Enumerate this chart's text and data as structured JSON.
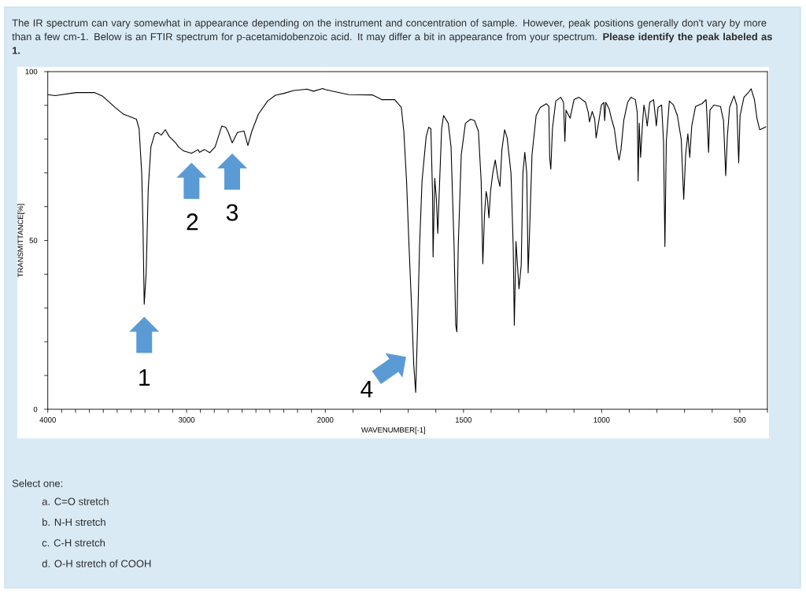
{
  "chart_data": [
    {
      "type": "line",
      "title": "The IR spectrum can vary somewhat in appearance depending on the instrument and concentration of sample. However, peak positions generally don't vary by more than a few cm-1. Below is an FTIR spectrum for p-acetamidobenzoic acid. It may differ a bit in appearance from your spectrum. **Please identify the peak labeled as 1.**",
      "ylabel": "TRANSMITTANCE[%]",
      "color": "#000000",
      "x": [
        4000,
        3947,
        3796,
        3664,
        3607,
        3512,
        3455,
        3361,
        3342,
        3323,
        3314,
        3305,
        3291,
        3276,
        3257,
        3229,
        3210,
        3182,
        3153,
        3125,
        3078,
        3058,
        3021,
        2964,
        2917,
        2907,
        2870,
        2832,
        2794,
        2746,
        2718,
        2699,
        2671,
        2633,
        2586,
        2558,
        2529,
        2482,
        2416,
        2359,
        2303,
        2227,
        2132,
        2085,
        2019,
        2000
      ],
      "values": [
        93.2,
        92.9,
        93.8,
        93.8,
        92.8,
        89.3,
        87.4,
        85.9,
        83.1,
        69.9,
        54.4,
        31.1,
        40.4,
        65.3,
        77.7,
        81.6,
        82.0,
        81.2,
        82.8,
        80.8,
        78.9,
        77.7,
        76.5,
        75.8,
        76.9,
        76.1,
        76.9,
        76.0,
        77.7,
        83.9,
        83.5,
        82.0,
        78.9,
        82.0,
        82.4,
        78.1,
        82.4,
        87.4,
        91.3,
        93.0,
        93.5,
        94.4,
        94.8,
        94.2,
        95.0,
        94.7
      ],
      "xlim": [
        4000,
        2000
      ],
      "ylim": [
        0,
        100
      ],
      "xticks": [
        4000,
        {
          "value": 3900,
          "label": null
        },
        {
          "value": 3800,
          "label": null
        },
        {
          "value": 3700,
          "label": null
        },
        {
          "value": 3600,
          "label": null
        },
        {
          "value": 3500,
          "label": null
        },
        {
          "value": 3400,
          "label": null
        },
        {
          "value": 3300,
          "label": null
        },
        {
          "value": 3200,
          "label": null
        },
        {
          "value": 3100,
          "label": null
        },
        3000,
        {
          "value": 2900,
          "label": null
        },
        {
          "value": 2800,
          "label": null
        },
        {
          "value": 2700,
          "label": null
        },
        {
          "value": 2600,
          "label": null
        },
        {
          "value": 2500,
          "label": null
        },
        {
          "value": 2400,
          "label": null
        },
        {
          "value": 2300,
          "label": null
        },
        {
          "value": 2200,
          "label": null
        },
        {
          "value": 2100,
          "label": null
        }
      ],
      "yticks": [
        0,
        {
          "value": 10,
          "label": null
        },
        {
          "value": 20,
          "label": null
        },
        {
          "value": 30,
          "label": null
        },
        {
          "value": 40,
          "label": null
        },
        50,
        {
          "value": 60,
          "label": null
        },
        {
          "value": 70,
          "label": null
        },
        {
          "value": 80,
          "label": null
        },
        {
          "value": 90,
          "label": null
        },
        100
      ],
      "annotations": [
        {
          "text": "1",
          "x": 3305,
          "y": 31.1
        },
        {
          "text": "2",
          "x": 2964,
          "y": 75.8
        },
        {
          "text": "3",
          "x": 2671,
          "y": 78.9
        }
      ]
    },
    {
      "type": "line",
      "xlabel": "WAVENUMBER[-1]",
      "color": "#000000",
      "x": [
        2000,
        1962,
        1915,
        1830,
        1796,
        1749,
        1725,
        1716,
        1706,
        1697,
        1687,
        1680,
        1673,
        1666,
        1659,
        1650,
        1635,
        1626,
        1618,
        1612,
        1610,
        1604,
        1598,
        1593,
        1588,
        1579,
        1572,
        1555,
        1545,
        1534,
        1528,
        1524,
        1519,
        1508,
        1493,
        1474,
        1460,
        1446,
        1436,
        1430,
        1424,
        1418,
        1413,
        1408,
        1402,
        1394,
        1385,
        1375,
        1368,
        1361,
        1351,
        1342,
        1328,
        1320,
        1316,
        1310,
        1304,
        1299,
        1291,
        1285,
        1278,
        1271,
        1266,
        1261,
        1252,
        1237,
        1222,
        1200,
        1191,
        1188,
        1184,
        1178,
        1166,
        1148,
        1138,
        1133,
        1129,
        1114,
        1100,
        1082,
        1058,
        1048,
        1044,
        1034,
        1025,
        1020,
        1013,
        1001,
        992,
        989,
        985,
        973,
        964,
        954,
        944,
        937,
        930,
        920,
        906,
        894,
        878,
        871,
        868,
        864,
        859,
        852,
        847,
        840,
        835,
        826,
        812,
        802,
        796,
        783,
        776,
        771,
        766,
        755,
        740,
        726,
        712,
        703,
        696,
        688,
        681,
        674,
        660,
        637,
        622,
        618,
        613,
        608,
        594,
        570,
        559,
        551,
        545,
        537,
        521,
        511,
        504,
        499,
        485,
        471,
        459,
        447,
        438,
        428,
        419,
        405
      ],
      "values": [
        94.7,
        94.0,
        93.2,
        93.1,
        91.7,
        91.7,
        89.4,
        82.4,
        67.6,
        48.2,
        28.7,
        13.2,
        5.0,
        24.9,
        48.2,
        67.6,
        80.8,
        83.5,
        83.1,
        63.7,
        45.1,
        68.4,
        62.2,
        52.1,
        63.7,
        83.1,
        87.0,
        84.7,
        77.7,
        48.2,
        24.9,
        22.9,
        48.2,
        75.4,
        84.7,
        85.9,
        85.5,
        82.4,
        67.6,
        43.1,
        57.5,
        64.5,
        62.2,
        56.7,
        64.5,
        69.9,
        73.8,
        68.4,
        66.0,
        76.9,
        82.8,
        80.4,
        69.9,
        48.2,
        24.9,
        49.7,
        42.0,
        35.7,
        42.7,
        69.9,
        76.1,
        69.9,
        40.4,
        52.1,
        75.4,
        87.0,
        89.4,
        90.5,
        89.7,
        74.6,
        71.1,
        83.1,
        91.3,
        92.4,
        90.9,
        79.3,
        88.6,
        86.2,
        91.7,
        92.4,
        90.9,
        87.8,
        85.1,
        88.2,
        85.9,
        80.4,
        83.9,
        90.1,
        90.9,
        85.5,
        90.9,
        89.0,
        85.9,
        83.1,
        76.9,
        73.8,
        76.9,
        85.5,
        90.9,
        92.4,
        91.7,
        87.8,
        67.6,
        84.7,
        74.6,
        84.7,
        90.1,
        87.0,
        83.9,
        90.9,
        91.7,
        83.9,
        89.4,
        90.1,
        79.3,
        48.2,
        79.3,
        91.3,
        90.1,
        87.0,
        80.0,
        62.2,
        75.4,
        81.6,
        74.6,
        83.9,
        89.7,
        90.5,
        91.7,
        85.5,
        76.1,
        88.6,
        90.1,
        89.7,
        85.5,
        69.2,
        80.8,
        89.4,
        92.8,
        90.1,
        73.0,
        87.0,
        92.4,
        93.6,
        94.9,
        91.7,
        86.2,
        82.8,
        83.1,
        83.7
      ],
      "xlim": [
        2000,
        400
      ],
      "ylim": [
        0,
        100
      ],
      "tick_labels": "x",
      "xticks": [
        2000,
        {
          "value": 1900,
          "label": null
        },
        {
          "value": 1800,
          "label": null
        },
        {
          "value": 1700,
          "label": null
        },
        {
          "value": 1600,
          "label": null
        },
        1500,
        {
          "value": 1400,
          "label": null
        },
        {
          "value": 1300,
          "label": null
        },
        {
          "value": 1200,
          "label": null
        },
        {
          "value": 1100,
          "label": null
        },
        1000,
        {
          "value": 900,
          "label": null
        },
        {
          "value": 800,
          "label": null
        },
        {
          "value": 700,
          "label": null
        },
        {
          "value": 600,
          "label": null
        },
        500,
        {
          "value": 400,
          "label": null
        }
      ],
      "annotations": [
        {
          "text": "4",
          "x": 1682,
          "y": 17
        },
        "Select one:",
        "a. C=O stretch",
        "b. N-H stretch",
        "c. C-H stretch",
        "d. O-H stretch of COOH"
      ]
    }
  ]
}
